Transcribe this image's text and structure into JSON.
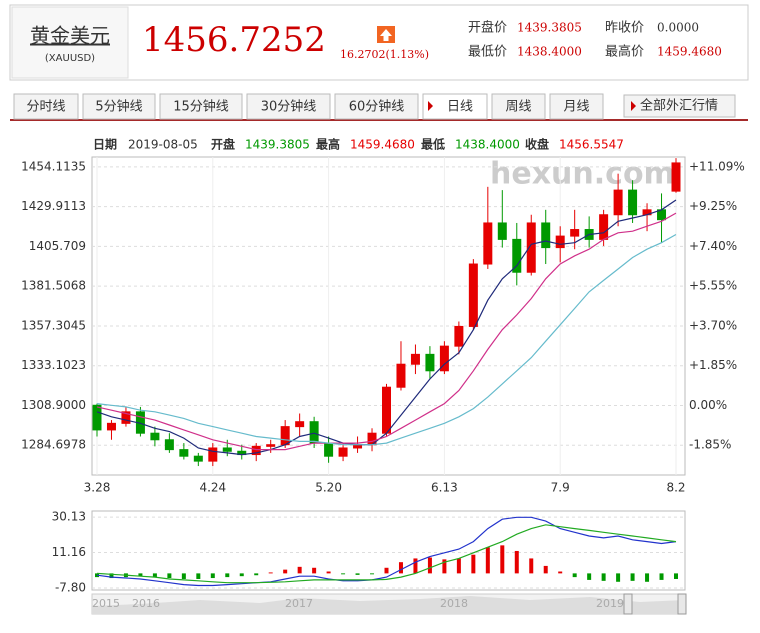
{
  "header": {
    "name": "黄金美元",
    "code": "(XAUUSD)",
    "price": "1456.7252",
    "change": "16.2702(1.13%)",
    "stats": [
      {
        "label": "开盘价",
        "value": "1439.3805"
      },
      {
        "label": "昨收价",
        "value": "0.0000"
      },
      {
        "label": "最低价",
        "value": "1438.4000"
      },
      {
        "label": "最高价",
        "value": "1459.4680"
      }
    ]
  },
  "tabs": [
    "分时线",
    "5分钟线",
    "15分钟线",
    "30分钟线",
    "60分钟线",
    "日线",
    "周线",
    "月线"
  ],
  "all_button": "全部外汇行情",
  "info": {
    "date_label": "日期",
    "date": "2019-08-05",
    "open_label": "开盘",
    "open": "1439.3805",
    "high_label": "最高",
    "high": "1459.4680",
    "low_label": "最低",
    "low": "1438.4000",
    "close_label": "收盘",
    "close": "1456.5547"
  },
  "chart_data": [
    {
      "type": "candlestick",
      "watermark": "hexun.com",
      "grid": true,
      "up_color": "#e60000",
      "down_color": "#009900",
      "categories": [
        "3.28",
        null,
        null,
        null,
        null,
        null,
        null,
        null,
        "4.24",
        null,
        null,
        null,
        null,
        null,
        null,
        null,
        "5.20",
        null,
        null,
        null,
        null,
        null,
        null,
        null,
        "6.13",
        null,
        null,
        null,
        null,
        null,
        null,
        null,
        "7.9",
        null,
        null,
        null,
        null,
        null,
        null,
        null,
        "8.2"
      ],
      "open": [
        1309,
        1294,
        1298,
        1305,
        1292,
        1288,
        1282,
        1278,
        1275,
        1283,
        1281,
        1279,
        1284,
        1285,
        1296,
        1299,
        1286,
        1278,
        1283,
        1285,
        1292,
        1320,
        1334,
        1340,
        1330,
        1345,
        1357,
        1395,
        1420,
        1410,
        1390,
        1420,
        1405,
        1412,
        1416,
        1410,
        1425,
        1440,
        1425,
        1428,
        1439.3805
      ],
      "high": [
        1310,
        1300,
        1308,
        1308,
        1296,
        1292,
        1286,
        1280,
        1286,
        1288,
        1285,
        1286,
        1288,
        1300,
        1304,
        1302,
        1290,
        1286,
        1290,
        1295,
        1322,
        1348,
        1346,
        1345,
        1348,
        1360,
        1398,
        1442,
        1440,
        1420,
        1425,
        1428,
        1418,
        1428,
        1424,
        1428,
        1450,
        1446,
        1432,
        1438,
        1459.468
      ],
      "low": [
        1290,
        1288,
        1296,
        1290,
        1284,
        1280,
        1276,
        1272,
        1272,
        1278,
        1276,
        1275,
        1280,
        1283,
        1290,
        1283,
        1274,
        1275,
        1280,
        1281,
        1290,
        1318,
        1328,
        1325,
        1328,
        1340,
        1355,
        1392,
        1405,
        1382,
        1388,
        1395,
        1396,
        1404,
        1405,
        1406,
        1418,
        1420,
        1415,
        1408,
        1438.4
      ],
      "close": [
        1294,
        1298,
        1305,
        1292,
        1288,
        1282,
        1278,
        1275,
        1283,
        1281,
        1279,
        1284,
        1285,
        1296,
        1299,
        1286,
        1278,
        1283,
        1285,
        1292,
        1320,
        1334,
        1340,
        1330,
        1345,
        1357,
        1395,
        1420,
        1410,
        1390,
        1420,
        1405,
        1412,
        1416,
        1410,
        1425,
        1440,
        1425,
        1428,
        1422,
        1456.5547
      ],
      "lines": [
        {
          "color": "#1f2a7a",
          "values": [
            1305,
            1302,
            1300,
            1298,
            1295,
            1293,
            1289,
            1283,
            1281,
            1280,
            1279,
            1280,
            1282,
            1285,
            1290,
            1292,
            1289,
            1286,
            1285,
            1285,
            1292,
            1303,
            1314,
            1325,
            1334,
            1341,
            1355,
            1373,
            1386,
            1394,
            1407,
            1409,
            1407,
            1408,
            1413,
            1414,
            1421,
            1423,
            1425,
            1428,
            1434
          ]
        },
        {
          "color": "#d0308a",
          "values": [
            1308,
            1306,
            1304,
            1302,
            1300,
            1297,
            1294,
            1291,
            1288,
            1286,
            1284,
            1282,
            1282,
            1282,
            1284,
            1286,
            1286,
            1286,
            1286,
            1287,
            1290,
            1295,
            1300,
            1305,
            1310,
            1318,
            1330,
            1343,
            1355,
            1364,
            1374,
            1386,
            1395,
            1400,
            1404,
            1410,
            1414,
            1415,
            1418,
            1421,
            1426
          ]
        },
        {
          "color": "#66bbcc",
          "values": [
            1310,
            1309,
            1308,
            1306,
            1305,
            1303,
            1301,
            1298,
            1296,
            1294,
            1292,
            1290,
            1289,
            1288,
            1287,
            1287,
            1286,
            1285,
            1285,
            1285,
            1286,
            1289,
            1292,
            1295,
            1298,
            1302,
            1307,
            1314,
            1322,
            1330,
            1338,
            1348,
            1358,
            1368,
            1378,
            1385,
            1392,
            1399,
            1404,
            1408,
            1413
          ]
        }
      ],
      "ylim": [
        1266.55,
        1460.16
      ],
      "yticks": [
        1454.1135,
        1429.9113,
        1405.709,
        {
          "value": 1381.5068,
          "label": "1381.5068"
        },
        1357.3045,
        1333.1023,
        {
          "value": 1308.9,
          "label": "1308.9000"
        },
        1284.6978
      ],
      "y2lim": [
        -3.235,
        11.556
      ],
      "y2ticks": [
        {
          "value": 11.09,
          "label": "+11.09%"
        },
        {
          "value": 9.25,
          "label": "+9.25%"
        },
        {
          "value": 7.4,
          "label": "+7.40%"
        },
        {
          "value": 5.55,
          "label": "+5.55%"
        },
        {
          "value": 3.7,
          "label": "+3.70%"
        },
        {
          "value": 1.85,
          "label": "+1.85%"
        },
        {
          "value": 0,
          "label": "0.00%"
        },
        {
          "value": -1.85,
          "label": "-1.85%"
        }
      ]
    },
    {
      "type": "macd",
      "up_color": "#e60000",
      "down_color": "#009900",
      "histogram": [
        -2,
        -2.5,
        -2,
        -1.5,
        -2,
        -2.5,
        -3,
        -3,
        -2.5,
        -2,
        -1.5,
        -1,
        0.5,
        2,
        3.5,
        3,
        1,
        -0.5,
        -0.8,
        -0.5,
        3,
        6,
        8,
        8.5,
        7.5,
        8,
        10,
        14,
        15,
        12,
        8,
        4,
        1,
        -2,
        -3.5,
        -4,
        -4.5,
        -4,
        -4.5,
        -3.5,
        -3
      ],
      "lines": [
        {
          "color": "#2233cc",
          "values": [
            -1,
            -2,
            -2.5,
            -3,
            -4,
            -5,
            -6,
            -6.5,
            -6.5,
            -6,
            -5.5,
            -5,
            -4.5,
            -3,
            -1.5,
            -1.5,
            -3,
            -4,
            -4,
            -3.5,
            -2,
            2,
            6,
            9,
            11,
            13,
            17,
            24,
            29,
            30,
            30,
            28,
            24,
            22,
            20,
            19,
            20,
            18,
            17,
            16,
            17
          ]
        },
        {
          "color": "#22aa22",
          "values": [
            0,
            -0.5,
            -1,
            -1.5,
            -2,
            -3,
            -3.5,
            -4,
            -4.5,
            -5,
            -5,
            -5,
            -4.8,
            -4.5,
            -4,
            -3.5,
            -3.5,
            -3.5,
            -3.5,
            -3.5,
            -3.2,
            -2,
            0,
            3,
            6,
            8,
            11,
            14,
            17,
            21,
            24,
            26,
            25,
            24,
            23,
            22,
            21,
            20,
            19,
            18,
            17
          ]
        }
      ],
      "ylim": [
        -8.9,
        33.4
      ],
      "yticks": [
        30.13,
        11.16,
        {
          "value": -7.8,
          "label": "-7.80"
        }
      ],
      "navigator_labels": [
        "2015",
        "2016",
        "2017",
        "2018",
        "2019"
      ]
    }
  ]
}
